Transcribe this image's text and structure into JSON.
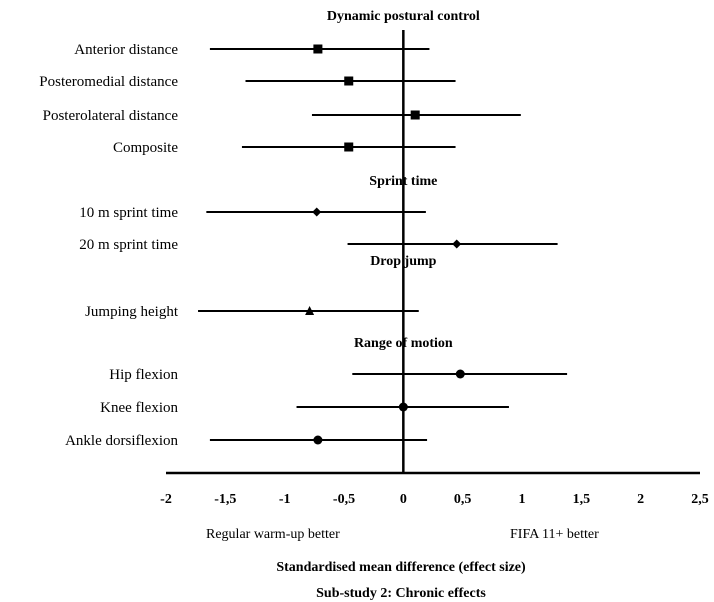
{
  "chart_data": {
    "type": "forest",
    "x_axis": {
      "min": -2,
      "max": 2.5,
      "ticks": [
        "-2",
        "-1,5",
        "-1",
        "-0,5",
        "0",
        "0,5",
        "1",
        "1,5",
        "2",
        "2,5"
      ],
      "tick_values": [
        -2,
        -1.5,
        -1,
        -0.5,
        0,
        0.5,
        1,
        1.5,
        2,
        2.5
      ],
      "reference_line": 0
    },
    "left_note": "Regular warm-up better",
    "right_note": "FIFA 11+ better",
    "xlabel": "Standardised mean difference (effect size)",
    "caption": "Sub-study 2: Chronic effects",
    "groups": [
      {
        "title": "Dynamic postural control",
        "marker": "square",
        "rows": [
          {
            "label": "Anterior distance",
            "estimate": -0.72,
            "ci_low": -1.63,
            "ci_high": 0.22
          },
          {
            "label": "Posteromedial distance",
            "estimate": -0.46,
            "ci_low": -1.33,
            "ci_high": 0.44
          },
          {
            "label": "Posterolateral distance",
            "estimate": 0.1,
            "ci_low": -0.77,
            "ci_high": 0.99
          },
          {
            "label": "Composite",
            "estimate": -0.46,
            "ci_low": -1.36,
            "ci_high": 0.44
          }
        ]
      },
      {
        "title": "Sprint time",
        "marker": "diamond",
        "rows": [
          {
            "label": "10 m sprint time",
            "estimate": -0.73,
            "ci_low": -1.66,
            "ci_high": 0.19
          },
          {
            "label": "20 m sprint time",
            "estimate": 0.45,
            "ci_low": -0.47,
            "ci_high": 1.3
          }
        ]
      },
      {
        "title": "Drop jump",
        "marker": "triangle",
        "rows": [
          {
            "label": "Jumping height",
            "estimate": -0.79,
            "ci_low": -1.73,
            "ci_high": 0.13
          }
        ]
      },
      {
        "title": "Range of motion",
        "marker": "circle",
        "rows": [
          {
            "label": "Hip flexion",
            "estimate": 0.48,
            "ci_low": -0.43,
            "ci_high": 1.38
          },
          {
            "label": "Knee flexion",
            "estimate": 0.0,
            "ci_low": -0.9,
            "ci_high": 0.89
          },
          {
            "label": "Ankle dorsiflexion",
            "estimate": -0.72,
            "ci_low": -1.63,
            "ci_high": 0.2
          }
        ]
      }
    ]
  }
}
